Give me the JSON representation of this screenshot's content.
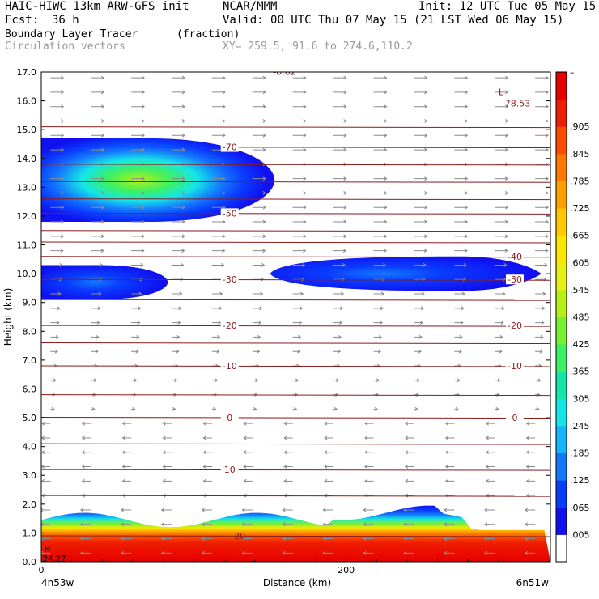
{
  "header": {
    "model": "HAIC-HIWC 13km ARW-GFS init",
    "org": "NCAR/MMM",
    "init": "Init: 12 UTC Tue 05 May 15",
    "fcst_label": "Fcst:",
    "fcst_value": "36 h",
    "valid": "Valid: 00 UTC Thu 07 May 15 (21 LST Wed 06 May 15)",
    "field_name": "Boundary Layer Tracer",
    "field_units": "(fraction)",
    "vector_label": "Circulation vectors",
    "xy_label": "XY= 259.5, 91.6 to 274.6,110.2"
  },
  "chart_data": {
    "type": "heatmap",
    "title": "Boundary Layer Tracer",
    "units": "(fraction)",
    "xlabel": "Distance (km)",
    "ylabel": "Height (km)",
    "xlim": [
      0,
      334
    ],
    "ylim": [
      0,
      17
    ],
    "x_ticks": [
      0,
      200
    ],
    "x_endpoint_labels": [
      "4n53w",
      "6n51w"
    ],
    "y_ticks": [
      "0.0",
      "1.0",
      "2.0",
      "3.0",
      "4.0",
      "5.0",
      "6.0",
      "7.0",
      "8.0",
      "9.0",
      "10.0",
      "11.0",
      "12.0",
      "13.0",
      "14.0",
      "15.0",
      "16.0",
      "17.0"
    ],
    "colorbar_levels": [
      ".005",
      ".065",
      ".125",
      ".185",
      ".245",
      ".305",
      ".365",
      ".425",
      ".485",
      ".545",
      ".605",
      ".665",
      ".725",
      ".785",
      ".845",
      ".905"
    ],
    "colorbar_top_label": "–",
    "colors": [
      "#ffffff",
      "#1010f0",
      "#0a3cff",
      "#1478ff",
      "#14b4ff",
      "#14e6e6",
      "#14e6aa",
      "#3cf064",
      "#78f032",
      "#b4f014",
      "#e6f014",
      "#fae600",
      "#ffc800",
      "#ffa000",
      "#ff7800",
      "#ff4b00",
      "#f01e00",
      "#e60000"
    ],
    "tracer_regions": [
      {
        "name": "upper-left plume",
        "x_range": [
          0,
          153
        ],
        "height_range": [
          11.8,
          14.7
        ],
        "max_fraction": 0.55
      },
      {
        "name": "left layer",
        "x_range": [
          0,
          83
        ],
        "height_range": [
          9.1,
          10.3
        ],
        "max_fraction": 0.07
      },
      {
        "name": "right layer",
        "x_range": [
          150,
          328
        ],
        "height_range": [
          9.4,
          10.6
        ],
        "max_fraction": 0.09
      },
      {
        "name": "boundary layer",
        "x_range": [
          0,
          334
        ],
        "height_range": [
          0,
          1.8
        ],
        "max_fraction": 0.97
      }
    ],
    "temperature_contours": [
      {
        "label": "-70",
        "height": 14.4
      },
      {
        "label": "-50",
        "height": 12.1
      },
      {
        "label": "-40",
        "height": 10.6
      },
      {
        "label": "-30",
        "height": 9.8
      },
      {
        "label": "-20",
        "height": 8.2
      },
      {
        "label": "-10",
        "height": 6.8
      },
      {
        "label": "0",
        "height": 5.0
      },
      {
        "label": "10",
        "height": 3.2
      },
      {
        "label": "20",
        "height": 0.9
      }
    ],
    "annotations": {
      "low_label": "L",
      "low_value": "-78.53",
      "top_fragment": "-8.82",
      "high_label": "H",
      "high_value": "24.27"
    }
  }
}
